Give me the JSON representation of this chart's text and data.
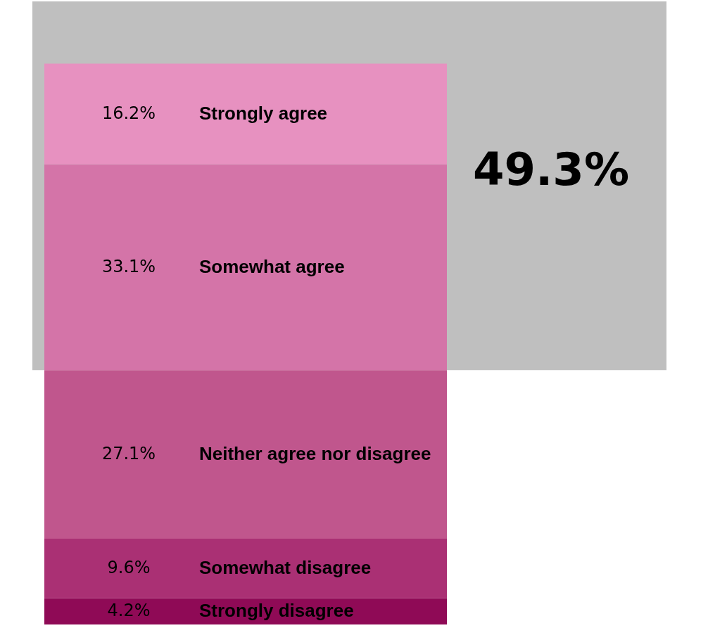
{
  "chart_data": {
    "type": "bar",
    "stacked": true,
    "categories": [
      null
    ],
    "series": [
      {
        "name": "Strongly disagree",
        "color": "#8f0a56",
        "values": [
          4.2
        ],
        "value_labels": [
          "4.2%"
        ]
      },
      {
        "name": "Somewhat disagree",
        "color": "#aa3074",
        "values": [
          9.6
        ],
        "value_labels": [
          "9.6%"
        ]
      },
      {
        "name": "Neither agree nor disagree",
        "color": "#c0568d",
        "values": [
          27.1
        ],
        "value_labels": [
          "27.1%"
        ]
      },
      {
        "name": "Somewhat agree",
        "color": "#d474a8",
        "values": [
          33.1
        ],
        "value_labels": [
          "33.1%"
        ]
      },
      {
        "name": "Strongly agree",
        "color": "#e791c0",
        "values": [
          16.2
        ],
        "value_labels": [
          "16.2%"
        ]
      }
    ],
    "bands": [
      {
        "axis": "y",
        "from": 40.9,
        "to": 100.2,
        "label": "49.3%",
        "color": "#bfbfbf"
      }
    ],
    "grid": false
  }
}
